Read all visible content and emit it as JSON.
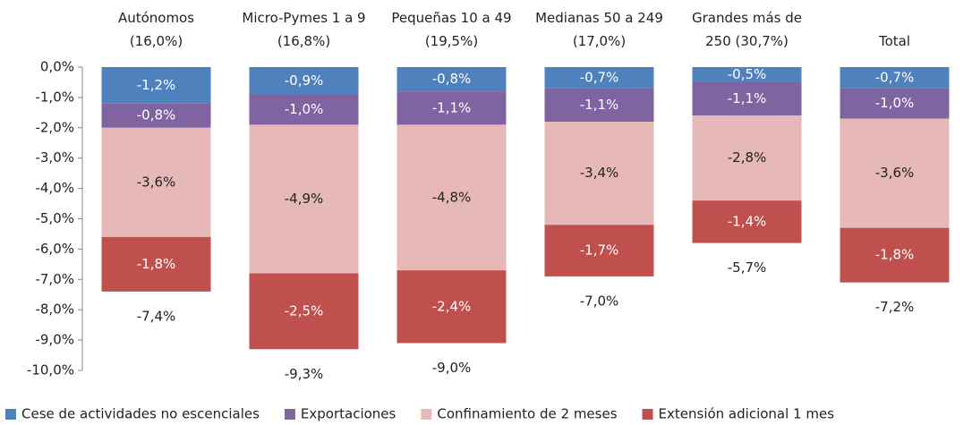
{
  "chart_data": {
    "type": "stacked-bar",
    "categories": [
      "Autónomos\n(16,0%)",
      "Micro-Pymes 1 a 9\n(16,8%)",
      "Pequeñas 10 a 49\n(19,5%)",
      "Medianas 50 a 249\n(17,0%)",
      "Grandes más de\n250 (30,7%)",
      "Total"
    ],
    "series": [
      {
        "name": "Cese de actividades no escenciales",
        "color": "#4f81bd",
        "label_color": "#ffffff",
        "values": [
          -1.2,
          -0.9,
          -0.8,
          -0.7,
          -0.5,
          -0.7
        ],
        "value_labels": [
          "-1,2%",
          "-0,9%",
          "-0,8%",
          "-0,7%",
          "-0,5%",
          "-0,7%"
        ]
      },
      {
        "name": "Exportaciones",
        "color": "#8064a2",
        "label_color": "#ffffff",
        "values": [
          -0.8,
          -1.0,
          -1.1,
          -1.1,
          -1.1,
          -1.0
        ],
        "value_labels": [
          "-0,8%",
          "-1,0%",
          "-1,1%",
          "-1,1%",
          "-1,1%",
          "-1,0%"
        ]
      },
      {
        "name": "Confinamiento de 2 meses",
        "color": "#e6b9b8",
        "label_color": "#222222",
        "values": [
          -3.6,
          -4.9,
          -4.8,
          -3.4,
          -2.8,
          -3.6
        ],
        "value_labels": [
          "-3,6%",
          "-4,9%",
          "-4,8%",
          "-3,4%",
          "-2,8%",
          "-3,6%"
        ]
      },
      {
        "name": "Extensión adicional 1 mes",
        "color": "#c0504d",
        "label_color": "#ffffff",
        "values": [
          -1.8,
          -2.5,
          -2.4,
          -1.7,
          -1.4,
          -1.8
        ],
        "value_labels": [
          "-1,8%",
          "-2,5%",
          "-2,4%",
          "-1,7%",
          "-1,4%",
          "-1,8%"
        ]
      }
    ],
    "totals": [
      -7.4,
      -9.3,
      -9.0,
      -7.0,
      -5.7,
      -7.2
    ],
    "total_labels": [
      "-7,4%",
      "-9,3%",
      "-9,0%",
      "-7,0%",
      "-5,7%",
      "-7,2%"
    ],
    "ylim": [
      -10,
      0
    ],
    "yticks": [
      {
        "value": 0,
        "label": "0,0%"
      },
      {
        "value": -1,
        "label": "-1,0%"
      },
      {
        "value": -2,
        "label": "-2,0%"
      },
      {
        "value": -3,
        "label": "-3,0%"
      },
      {
        "value": -4,
        "label": "-4,0%"
      },
      {
        "value": -5,
        "label": "-5,0%"
      },
      {
        "value": -6,
        "label": "-6,0%"
      },
      {
        "value": -7,
        "label": "-7,0%"
      },
      {
        "value": -8,
        "label": "-8,0%"
      },
      {
        "value": -9,
        "label": "-9,0%"
      },
      {
        "value": -10,
        "label": "-10,0%"
      }
    ],
    "legend": "bottom",
    "grid": false
  }
}
